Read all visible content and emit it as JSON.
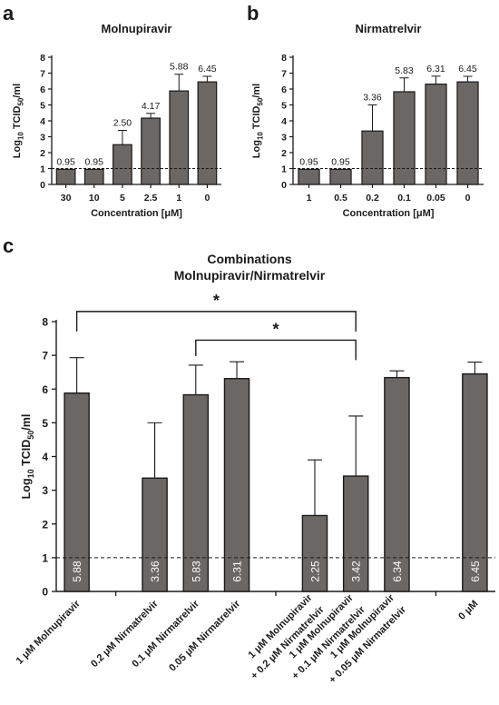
{
  "figure": {
    "colors": {
      "bar": "#6b6765",
      "axis": "#1a1a1a",
      "text": "#1a1a1a",
      "bar_label_inner": "#ffffff"
    }
  },
  "chart_data": [
    {
      "panel_label": "a",
      "type": "bar",
      "title": "Molnupiravir",
      "ylabel": "Log10 TCID50/ml",
      "xlabel": "Concentration [μM]",
      "ylim": [
        0,
        8
      ],
      "yticks": [
        0,
        1,
        2,
        3,
        4,
        5,
        6,
        7,
        8
      ],
      "categories": [
        "30",
        "10",
        "5",
        "2.5",
        "1",
        "0"
      ],
      "values": [
        0.95,
        0.95,
        2.5,
        4.17,
        5.88,
        6.45
      ],
      "value_labels": [
        "0.95",
        "0.95",
        "2.50",
        "4.17",
        "5.88",
        "6.45"
      ],
      "error_plus": [
        0,
        0,
        0.9,
        0.3,
        1.05,
        0.35
      ],
      "detection_limit": 1
    },
    {
      "panel_label": "b",
      "type": "bar",
      "title": "Nirmatrelvir",
      "ylabel": "Log10 TCID50/ml",
      "xlabel": "Concentration [μM]",
      "ylim": [
        0,
        8
      ],
      "yticks": [
        0,
        1,
        2,
        3,
        4,
        5,
        6,
        7,
        8
      ],
      "categories": [
        "1",
        "0.5",
        "0.2",
        "0.1",
        "0.05",
        "0"
      ],
      "values": [
        0.95,
        0.95,
        3.36,
        5.83,
        6.31,
        6.45
      ],
      "value_labels": [
        "0.95",
        "0.95",
        "3.36",
        "5.83",
        "6.31",
        "6.45"
      ],
      "error_plus": [
        0,
        0,
        1.64,
        0.87,
        0.5,
        0.35
      ],
      "detection_limit": 1
    },
    {
      "panel_label": "c",
      "type": "bar",
      "title": "Combinations",
      "subtitle": "Molnupiravir/Nirmatrelvir",
      "ylabel": "Log10 TCID50/ml",
      "xlabel": "",
      "ylim": [
        0,
        8
      ],
      "yticks": [
        0,
        1,
        2,
        3,
        4,
        5,
        6,
        7,
        8
      ],
      "categories": [
        "1 μM Molnupiravir",
        "0.2 μM Nirmatrelvir",
        "0.1 μM Nirmatrelvir",
        "0.05 μM Nirmatrelvir",
        "1 μM Molnupiravir + 0.2 μM Nirmatrelvir",
        "1 μM Molnupiravir + 0.1 μM Nirmatrelvir",
        "1 μM Molnupiravir + 0.05 μM Nirmatrelvir",
        "0 μM"
      ],
      "category_lines": [
        [
          "1 μM Molnupiravir"
        ],
        [
          "0.2 μM Nirmatrelvir"
        ],
        [
          "0.1 μM Nirmatrelvir"
        ],
        [
          "0.05 μM Nirmatrelvir"
        ],
        [
          "1 μM Molnupiravir",
          "+ 0.2 μM Nirmatrelvir"
        ],
        [
          "1 μM Molnupiravir",
          "+ 0.1 μM Nirmatrelvir"
        ],
        [
          "1 μM Molnupiravir",
          "+ 0.05 μM Nirmatrelvir"
        ],
        [
          "0 μM"
        ]
      ],
      "groups": [
        [
          0
        ],
        [
          1,
          2,
          3
        ],
        [
          4,
          5,
          6
        ],
        [
          7
        ]
      ],
      "values": [
        5.88,
        3.36,
        5.83,
        6.31,
        2.25,
        3.42,
        6.34,
        6.45
      ],
      "value_labels": [
        "5.88",
        "3.36",
        "5.83",
        "6.31",
        "2.25",
        "3.42",
        "6.34",
        "6.45"
      ],
      "error_plus": [
        1.05,
        1.64,
        0.88,
        0.5,
        1.65,
        1.78,
        0.2,
        0.35
      ],
      "detection_limit": 1,
      "significance": [
        {
          "from": 0,
          "to": 5,
          "y": 8.3,
          "label": "*"
        },
        {
          "from": 2,
          "to": 5,
          "y": 7.45,
          "label": "*"
        }
      ]
    }
  ]
}
